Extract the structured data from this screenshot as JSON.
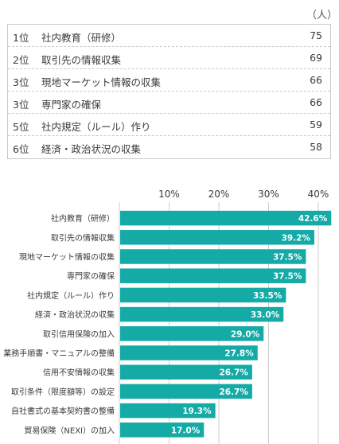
{
  "unit_label": "（人）",
  "ranking": [
    {
      "rank": "1位",
      "item": "社内教育（研修）",
      "count": "75"
    },
    {
      "rank": "2位",
      "item": "取引先の情報収集",
      "count": "69"
    },
    {
      "rank": "3位",
      "item": "現地マーケット情報の収集",
      "count": "66"
    },
    {
      "rank": "3位",
      "item": "専門家の確保",
      "count": "66"
    },
    {
      "rank": "5位",
      "item": "社内規定（ルール）作り",
      "count": "59"
    },
    {
      "rank": "6位",
      "item": "経済・政治状況の収集",
      "count": "58"
    }
  ],
  "colors": {
    "bar": "#14aaa6",
    "grid": "#cccccc",
    "table_border": "#c9c9c9"
  },
  "chart_data": {
    "type": "bar",
    "orientation": "horizontal",
    "title": "",
    "xlabel": "",
    "ylabel": "",
    "xlim": [
      0,
      40
    ],
    "ticks": [
      10,
      20,
      30,
      40
    ],
    "tick_labels": [
      "10%",
      "20%",
      "30%",
      "40%"
    ],
    "grid": true,
    "categories": [
      "社内教育（研修）",
      "取引先の情報収集",
      "現地マーケット情報の収集",
      "専門家の確保",
      "社内規定（ルール）作り",
      "経済・政治状況の収集",
      "取引信用保険の加入",
      "業務手順書・マニュアルの整備",
      "信用不安情報の収集",
      "取引条件（限度額等）の設定",
      "自社書式の基本契約書の整備",
      "貿易保険（NEXI）の加入"
    ],
    "values": [
      42.6,
      39.2,
      37.5,
      37.5,
      33.5,
      33.0,
      29.0,
      27.8,
      26.7,
      26.7,
      19.3,
      17.0
    ],
    "data_labels": [
      "42.6%",
      "39.2%",
      "37.5%",
      "37.5%",
      "33.5%",
      "33.0%",
      "29.0%",
      "27.8%",
      "26.7%",
      "26.7%",
      "19.3%",
      "17.0%"
    ]
  }
}
